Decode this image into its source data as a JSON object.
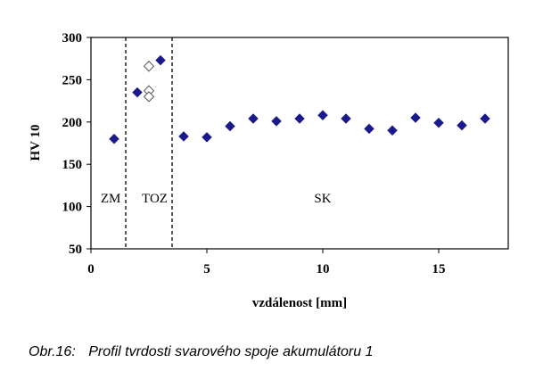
{
  "chart_data": {
    "type": "scatter",
    "xlabel": "vzdálenost [mm]",
    "ylabel": "HV 10",
    "xlim": [
      0,
      18
    ],
    "ylim": [
      50,
      300
    ],
    "xticks": [
      0,
      5,
      10,
      15
    ],
    "yticks": [
      50,
      100,
      150,
      200,
      250,
      300
    ],
    "grid": false,
    "legend": "none",
    "boundaries": [
      1.5,
      3.5
    ],
    "region_labels": [
      {
        "text": "ZM",
        "x": 0.85,
        "y": 110
      },
      {
        "text": "TOZ",
        "x": 2.75,
        "y": 110
      },
      {
        "text": "SK",
        "x": 10.0,
        "y": 110
      }
    ],
    "series": [
      {
        "marker": "filled-diamond",
        "color": "#1a1a8c",
        "points": [
          [
            1,
            180
          ],
          [
            2,
            235
          ],
          [
            3,
            273
          ],
          [
            4,
            183
          ],
          [
            5,
            182
          ],
          [
            6,
            195
          ],
          [
            7,
            204
          ],
          [
            8,
            201
          ],
          [
            9,
            204
          ],
          [
            10,
            208
          ],
          [
            11,
            204
          ],
          [
            12,
            192
          ],
          [
            13,
            190
          ],
          [
            14,
            205
          ],
          [
            15,
            199
          ],
          [
            16,
            196
          ],
          [
            17,
            204
          ]
        ]
      },
      {
        "marker": "open-diamond",
        "color": "#555555",
        "points": [
          [
            2.5,
            266
          ],
          [
            2.5,
            237
          ],
          [
            2.5,
            230
          ]
        ]
      }
    ]
  },
  "caption": {
    "number": "Obr.16:",
    "text": "Profil tvrdosti svarového spoje akumulátoru 1"
  }
}
